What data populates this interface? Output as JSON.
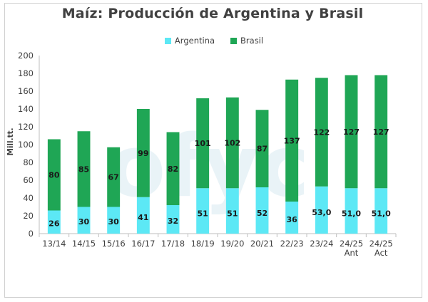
{
  "chart_data": {
    "type": "bar",
    "stacked": true,
    "title": "Maíz: Producción de Argentina y Brasil",
    "ylabel": "Mill.tt.",
    "xlabel": "",
    "ylim": [
      0,
      200
    ],
    "yticks": [
      0,
      20,
      40,
      60,
      80,
      100,
      120,
      140,
      160,
      180,
      200
    ],
    "categories": [
      [
        "13/14"
      ],
      [
        "14/15"
      ],
      [
        "15/16"
      ],
      [
        "16/17"
      ],
      [
        "17/18"
      ],
      [
        "18/19"
      ],
      [
        "19/20"
      ],
      [
        "20/21"
      ],
      [
        "22/23"
      ],
      [
        "23/24"
      ],
      [
        "24/25",
        "Ant"
      ],
      [
        "24/25",
        "Act"
      ]
    ],
    "series": [
      {
        "name": "Argentina",
        "color": "#5ce8f5",
        "values": [
          26,
          30,
          30,
          41,
          32,
          51,
          51,
          52,
          36,
          53,
          51,
          51
        ],
        "labels": [
          "26",
          "30",
          "30",
          "41",
          "32",
          "51",
          "51",
          "52",
          "36",
          "53,0",
          "51,0",
          "51,0"
        ]
      },
      {
        "name": "Brasil",
        "color": "#1fa655",
        "values": [
          80,
          85,
          67,
          99,
          82,
          101,
          102,
          87,
          137,
          122,
          127,
          127
        ],
        "labels": [
          "80",
          "85",
          "67",
          "99",
          "82",
          "101",
          "102",
          "87",
          "137",
          "122",
          "127",
          "127"
        ]
      }
    ],
    "legend_position": "top-center",
    "grid": false
  }
}
